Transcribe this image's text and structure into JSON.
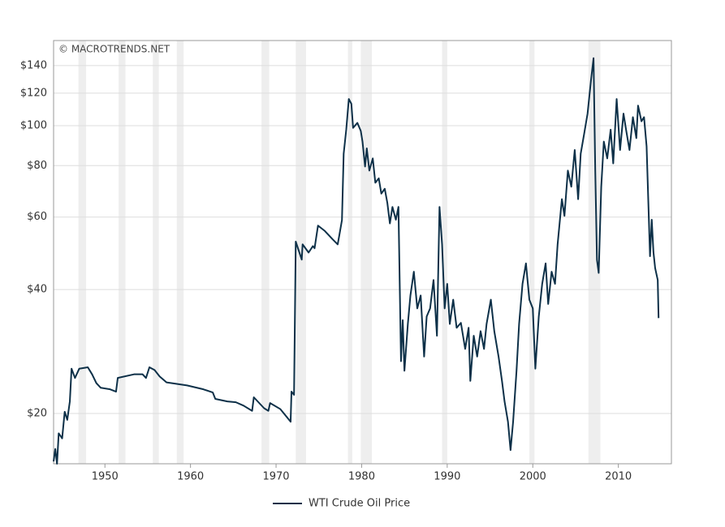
{
  "chart_data": {
    "type": "line",
    "watermark": "© MACROTRENDS.NET",
    "log_scale": "y",
    "grid": true,
    "legend": "bottom",
    "xlim": [
      1944,
      2016.2
    ],
    "xticks": [
      1950,
      1960,
      1970,
      1980,
      1990,
      2000,
      2010
    ],
    "ylim": [
      15.1,
      161
    ],
    "yticks": [
      {
        "value": 20,
        "label": "$20"
      },
      {
        "value": 40,
        "label": "$40"
      },
      {
        "value": 60,
        "label": "$60"
      },
      {
        "value": 80,
        "label": "$80"
      },
      {
        "value": 100,
        "label": "$100"
      },
      {
        "value": 120,
        "label": "$120"
      },
      {
        "value": 140,
        "label": "$140"
      }
    ],
    "shaded_periods": [
      [
        1946.9,
        1947.8
      ],
      [
        1951.6,
        1952.4
      ],
      [
        1955.6,
        1956.3
      ],
      [
        1958.4,
        1959.2
      ],
      [
        1968.3,
        1969.2
      ],
      [
        1972.3,
        1973.5
      ],
      [
        1978.4,
        1978.9
      ],
      [
        1979.9,
        1981.2
      ],
      [
        1989.4,
        1990.0
      ],
      [
        1999.6,
        2000.2
      ],
      [
        2006.5,
        2007.9
      ]
    ],
    "shade_color": "#eeeeee",
    "x": [
      1944.0,
      1944.2,
      1944.4,
      1944.6,
      1945.0,
      1945.3,
      1945.6,
      1945.9,
      1946.1,
      1946.5,
      1947.0,
      1948.0,
      1948.5,
      1949.0,
      1949.5,
      1950.6,
      1951.3,
      1951.5,
      1953.4,
      1954.4,
      1954.8,
      1955.2,
      1955.8,
      1956.4,
      1957.2,
      1959.6,
      1961.5,
      1962.6,
      1962.9,
      1964.3,
      1965.3,
      1966.2,
      1967.2,
      1967.4,
      1968.6,
      1969.1,
      1969.3,
      1970.5,
      1971.7,
      1971.8,
      1972.1,
      1972.3,
      1973.0,
      1973.1,
      1973.8,
      1974.3,
      1974.5,
      1974.9,
      1975.7,
      1976.6,
      1977.2,
      1977.4,
      1977.7,
      1977.9,
      1978.2,
      1978.5,
      1978.8,
      1979.0,
      1979.5,
      1979.9,
      1980.1,
      1980.4,
      1980.6,
      1980.9,
      1981.3,
      1981.6,
      1982.0,
      1982.3,
      1982.7,
      1983.0,
      1983.3,
      1983.6,
      1984.0,
      1984.3,
      1984.6,
      1984.8,
      1985.0,
      1985.4,
      1985.7,
      1986.1,
      1986.5,
      1986.9,
      1987.3,
      1987.6,
      1988.0,
      1988.4,
      1988.8,
      1989.1,
      1989.4,
      1989.7,
      1990.0,
      1990.3,
      1990.7,
      1991.1,
      1991.6,
      1992.1,
      1992.5,
      1992.7,
      1993.1,
      1993.5,
      1993.9,
      1994.3,
      1994.6,
      1995.1,
      1995.5,
      1996.0,
      1996.4,
      1996.7,
      1997.1,
      1997.4,
      1997.7,
      1998.1,
      1998.4,
      1998.8,
      1999.2,
      1999.6,
      2000.0,
      2000.3,
      2000.7,
      2001.1,
      2001.5,
      2001.8,
      2002.2,
      2002.6,
      2002.9,
      2003.4,
      2003.7,
      2004.1,
      2004.5,
      2004.9,
      2005.3,
      2005.6,
      2006.0,
      2006.4,
      2006.8,
      2007.1,
      2007.3,
      2007.5,
      2007.7,
      2008.0,
      2008.3,
      2008.7,
      2009.1,
      2009.4,
      2009.8,
      2010.2,
      2010.6,
      2010.9,
      2011.3,
      2011.7,
      2012.1,
      2012.3,
      2012.7,
      2013.0,
      2013.3,
      2013.7,
      2013.9,
      2014.1,
      2014.3,
      2014.6,
      2014.7
    ],
    "series": [
      {
        "name": "WTI Crude Oil Price",
        "color": "#0d3048",
        "values": [
          15.3,
          16.4,
          15.1,
          17.9,
          17.4,
          20.2,
          19.3,
          21.4,
          25.7,
          24.4,
          25.7,
          25.9,
          24.9,
          23.7,
          23.1,
          22.9,
          22.6,
          24.4,
          24.9,
          24.9,
          24.4,
          25.9,
          25.5,
          24.6,
          23.8,
          23.4,
          22.9,
          22.5,
          21.7,
          21.4,
          21.3,
          20.9,
          20.3,
          21.9,
          20.6,
          20.3,
          21.2,
          20.5,
          19.1,
          22.6,
          22.2,
          52.3,
          47.3,
          51.5,
          49.2,
          51.0,
          50.4,
          57.2,
          55.5,
          53.0,
          51.5,
          54.3,
          59.0,
          85.5,
          97.8,
          116.1,
          113,
          98.8,
          101.6,
          97.1,
          91.5,
          79.6,
          88.1,
          77.8,
          83.3,
          72.7,
          74.5,
          68.4,
          70.3,
          65.0,
          57.9,
          63.5,
          59.1,
          63.5,
          26.8,
          33.7,
          25.4,
          33.0,
          38.7,
          44.2,
          36.0,
          38.7,
          27.5,
          34.4,
          36.0,
          42.2,
          30.9,
          63.5,
          51.5,
          36.0,
          41.3,
          33.0,
          37.8,
          32.3,
          33.2,
          28.7,
          32.3,
          24.0,
          30.9,
          27.5,
          31.7,
          28.7,
          33.0,
          37.8,
          31.7,
          27.5,
          24.0,
          21.4,
          19.1,
          16.3,
          19.1,
          25.4,
          33.0,
          41.3,
          46.3,
          37.8,
          36.0,
          25.7,
          34.4,
          41.3,
          46.3,
          36.9,
          44.2,
          41.3,
          51.5,
          66.3,
          60.4,
          77.8,
          71.1,
          87.3,
          66.3,
          85.5,
          95.5,
          107,
          128.8,
          145.9,
          77.8,
          47.2,
          43.9,
          71.1,
          91.5,
          83.3,
          97.8,
          81.0,
          116.1,
          87.3,
          107,
          97.8,
          87.3,
          104.9,
          93.3,
          111.9,
          102.5,
          104.9,
          89.1,
          48.2,
          59.1,
          49.3,
          45.1,
          42.2,
          34.1
        ]
      }
    ]
  }
}
